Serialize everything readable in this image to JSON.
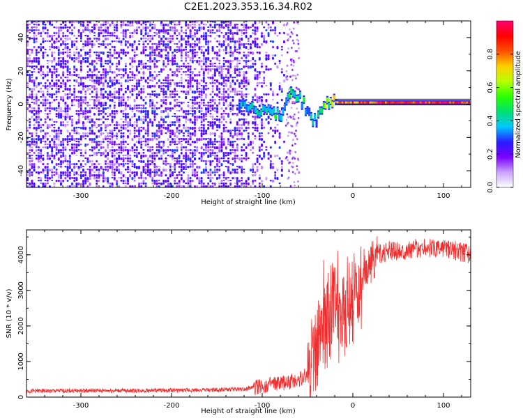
{
  "title": "C2E1.2023.353.16.34.R02",
  "chart_data": [
    {
      "type": "heatmap",
      "xlabel": "Height of straight line (km)",
      "ylabel": "Frequency (Hz)",
      "xlim": [
        -360,
        130
      ],
      "ylim": [
        -50,
        50
      ],
      "xticks": [
        -300,
        -200,
        -100,
        0,
        100
      ],
      "xtick_labels": [
        "-300",
        "-200",
        "-100",
        "0",
        "100"
      ],
      "yticks": [
        -40,
        -20,
        0,
        20,
        40
      ],
      "ytick_labels": [
        "-40",
        "-20",
        "0",
        "20",
        "40"
      ],
      "colorbar": {
        "label": "Normalized spectral amplitude",
        "range": [
          0,
          1
        ],
        "ticks": [
          0.0,
          0.2,
          0.4,
          0.6,
          0.8
        ],
        "tick_labels": [
          "0.0",
          "0.2",
          "0.4",
          "0.6",
          "0.8"
        ],
        "colormap": [
          "#ffffff",
          "#c9a3ff",
          "#7a00ff",
          "#2a1bff",
          "#00c8ff",
          "#00e070",
          "#27ff00",
          "#b8ff00",
          "#ffd000",
          "#ff5000",
          "#ff0000",
          "#ff0070"
        ]
      },
      "noise_region": {
        "x": [
          -360,
          -75
        ],
        "amplitude": 0.15
      },
      "signal_track": [
        {
          "x": -125,
          "y": 0,
          "amplitude": 0.35
        },
        {
          "x": -115,
          "y": -3,
          "amplitude": 0.4
        },
        {
          "x": -105,
          "y": -4,
          "amplitude": 0.45
        },
        {
          "x": -95,
          "y": -5,
          "amplitude": 0.5
        },
        {
          "x": -85,
          "y": -7,
          "amplitude": 0.45
        },
        {
          "x": -75,
          "y": -4,
          "amplitude": 0.4
        },
        {
          "x": -68,
          "y": 8,
          "amplitude": 0.5
        },
        {
          "x": -58,
          "y": 4,
          "amplitude": 0.45
        },
        {
          "x": -48,
          "y": -6,
          "amplitude": 0.4
        },
        {
          "x": -40,
          "y": -12,
          "amplitude": 0.3
        },
        {
          "x": -30,
          "y": 2,
          "amplitude": 0.6
        },
        {
          "x": -15,
          "y": 1,
          "amplitude": 0.75
        },
        {
          "x": 0,
          "y": 1,
          "amplitude": 0.8
        },
        {
          "x": 25,
          "y": 1,
          "amplitude": 0.85
        },
        {
          "x": 50,
          "y": 1,
          "amplitude": 0.9
        },
        {
          "x": 75,
          "y": 1,
          "amplitude": 0.9
        },
        {
          "x": 100,
          "y": 1,
          "amplitude": 0.88
        },
        {
          "x": 130,
          "y": 1,
          "amplitude": 0.88
        }
      ]
    },
    {
      "type": "line",
      "xlabel": "Height of straight line (km)",
      "ylabel": "SNR (10 * v/v)",
      "xlim": [
        -360,
        130
      ],
      "ylim": [
        0,
        4700
      ],
      "xticks": [
        -300,
        -200,
        -100,
        0,
        100
      ],
      "xtick_labels": [
        "-300",
        "-200",
        "-100",
        "0",
        "100"
      ],
      "yticks": [
        0,
        1000,
        2000,
        3000,
        4000
      ],
      "ytick_labels": [
        "0",
        "1000",
        "2000",
        "3000",
        "4000"
      ],
      "color": "#f03030",
      "series": [
        {
          "x": [
            -360,
            -300,
            -200,
            -150,
            -120,
            -100,
            -80,
            -60,
            -50,
            -45,
            -40,
            -35,
            -30,
            -25,
            -20,
            -15,
            -10,
            -5,
            0,
            5,
            10,
            15,
            20,
            30,
            40,
            60,
            80,
            100,
            115,
            130
          ],
          "values": [
            170,
            180,
            190,
            200,
            230,
            300,
            380,
            480,
            650,
            1000,
            1400,
            2200,
            2000,
            2300,
            2600,
            2300,
            2500,
            2700,
            2600,
            3000,
            3200,
            3600,
            3800,
            4000,
            4100,
            4150,
            4200,
            4150,
            4100,
            4000
          ]
        }
      ]
    }
  ]
}
